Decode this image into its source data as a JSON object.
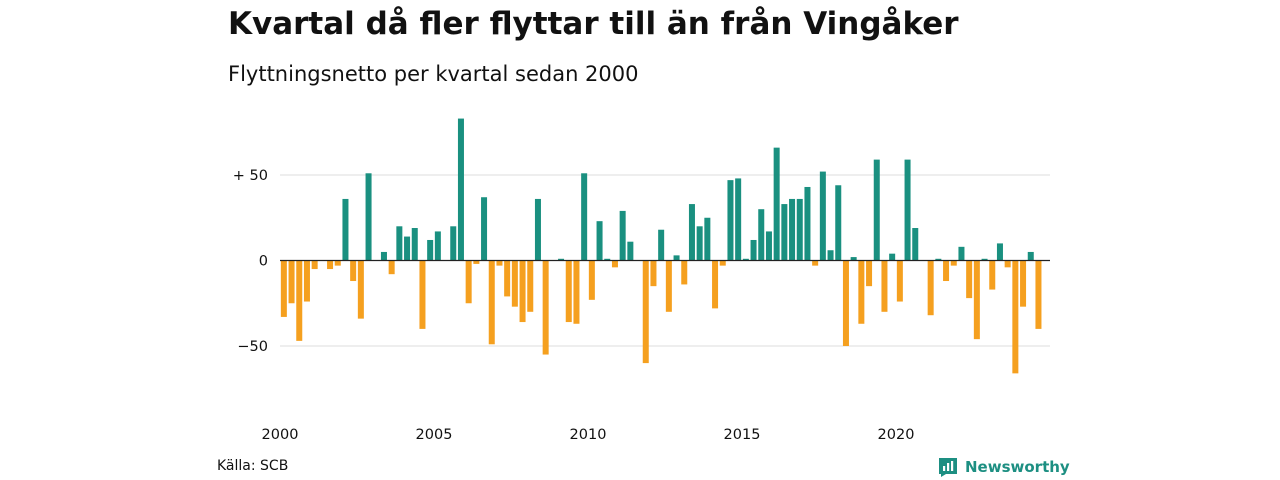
{
  "title": "Kvartal då fler flyttar till än från Vingåker",
  "subtitle": "Flyttningsnetto per kvartal sedan 2000",
  "source": "Källa: SCB",
  "brand": "Newsworthy",
  "colors": {
    "positive": "#1a9080",
    "negative": "#f5a01f",
    "grid": "#dddddd",
    "brand": "#1d8f82"
  },
  "chart_data": {
    "type": "bar",
    "xlabel": "",
    "ylabel": "",
    "ylim": [
      -70,
      85
    ],
    "y_ticks": [
      50,
      0,
      -50
    ],
    "y_tick_labels": [
      "+ 50",
      "0",
      "−50"
    ],
    "x_tick_labels": [
      "2000",
      "2005",
      "2010",
      "2015",
      "2020"
    ],
    "x_tick_years": [
      2000,
      2005,
      2010,
      2015,
      2020
    ],
    "start_year": 2000,
    "grid": true,
    "categories": [
      "2000K1",
      "2000K2",
      "2000K3",
      "2000K4",
      "2001K1",
      "2001K2",
      "2001K3",
      "2001K4",
      "2002K1",
      "2002K2",
      "2002K3",
      "2002K4",
      "2003K1",
      "2003K2",
      "2003K3",
      "2003K4",
      "2004K1",
      "2004K2",
      "2004K3",
      "2004K4",
      "2005K1",
      "2005K2",
      "2005K3",
      "2005K4",
      "2006K1",
      "2006K2",
      "2006K3",
      "2006K4",
      "2007K1",
      "2007K2",
      "2007K3",
      "2007K4",
      "2008K1",
      "2008K2",
      "2008K3",
      "2008K4",
      "2009K1",
      "2009K2",
      "2009K3",
      "2009K4",
      "2010K1",
      "2010K2",
      "2010K3",
      "2010K4",
      "2011K1",
      "2011K2",
      "2011K3",
      "2011K4",
      "2012K1",
      "2012K2",
      "2012K3",
      "2012K4",
      "2013K1",
      "2013K2",
      "2013K3",
      "2013K4",
      "2014K1",
      "2014K2",
      "2014K3",
      "2014K4",
      "2015K1",
      "2015K2",
      "2015K3",
      "2015K4",
      "2016K1",
      "2016K2",
      "2016K3",
      "2016K4",
      "2017K1",
      "2017K2",
      "2017K3",
      "2017K4",
      "2018K1",
      "2018K2",
      "2018K3",
      "2018K4",
      "2019K1",
      "2019K2",
      "2019K3",
      "2019K4",
      "2020K1",
      "2020K2",
      "2020K3",
      "2020K4",
      "2021K1",
      "2021K2",
      "2021K3",
      "2021K4",
      "2022K1",
      "2022K2",
      "2022K3",
      "2022K4",
      "2023K1",
      "2023K2",
      "2023K3",
      "2023K4",
      "2024K1",
      "2024K2",
      "2024K3",
      "2024K4"
    ],
    "values": [
      -33,
      -25,
      -47,
      -24,
      -5,
      0,
      -5,
      -3,
      36,
      -12,
      -34,
      51,
      0,
      5,
      -8,
      20,
      14,
      19,
      -40,
      12,
      17,
      0,
      20,
      83,
      -25,
      -2,
      37,
      -49,
      -3,
      -21,
      -27,
      -36,
      -30,
      36,
      -55,
      0,
      1,
      -36,
      -37,
      51,
      -23,
      23,
      1,
      -4,
      29,
      11,
      0,
      -60,
      -15,
      18,
      -30,
      3,
      -14,
      33,
      20,
      25,
      -28,
      -3,
      47,
      48,
      1,
      12,
      30,
      17,
      66,
      33,
      36,
      36,
      43,
      -3,
      52,
      6,
      44,
      -50,
      2,
      -37,
      -15,
      59,
      -30,
      4,
      -24,
      59,
      19,
      0,
      -32,
      1,
      -12,
      -3,
      8,
      -22,
      -46,
      1,
      -17,
      10,
      -4,
      -66,
      -27,
      5,
      -40,
      0
    ]
  }
}
